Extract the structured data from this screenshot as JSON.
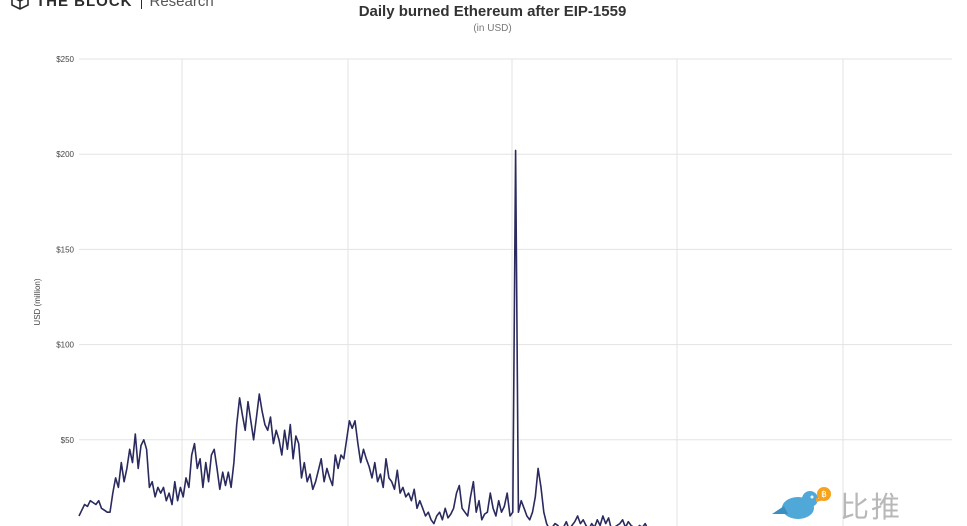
{
  "brand": {
    "name": "THE BLOCK",
    "section": "Research"
  },
  "watermark": {
    "text": "比推",
    "icon": "bird-bitcoin-icon"
  },
  "chart_data": {
    "type": "line",
    "title": "Daily burned Ethereum after EIP-1559",
    "subtitle": "(in USD)",
    "ylabel": "USD (million)",
    "xlabel": "",
    "ylim": [
      0,
      250
    ],
    "xlim": [
      0,
      1000
    ],
    "grid": true,
    "line_color": "#2a2a5e",
    "y_ticks": [
      {
        "value": 50,
        "label": "$50"
      },
      {
        "value": 100,
        "label": "$100"
      },
      {
        "value": 150,
        "label": "$150"
      },
      {
        "value": 200,
        "label": "$200"
      },
      {
        "value": 250,
        "label": "$250"
      }
    ],
    "series": [
      {
        "values": [
          10,
          13,
          16,
          15,
          18,
          17,
          16,
          18,
          14,
          13,
          12,
          12,
          22,
          30,
          25,
          38,
          28,
          35,
          45,
          38,
          53,
          35,
          47,
          50,
          45,
          25,
          28,
          20,
          25,
          22,
          25,
          18,
          22,
          16,
          28,
          18,
          25,
          20,
          30,
          25,
          42,
          48,
          35,
          40,
          25,
          38,
          28,
          42,
          45,
          35,
          24,
          33,
          26,
          33,
          25,
          38,
          58,
          72,
          63,
          55,
          70,
          60,
          50,
          62,
          74,
          65,
          58,
          55,
          62,
          48,
          55,
          50,
          42,
          55,
          45,
          58,
          40,
          52,
          48,
          30,
          38,
          28,
          32,
          24,
          28,
          34,
          40,
          28,
          35,
          30,
          26,
          42,
          35,
          42,
          40,
          50,
          60,
          56,
          60,
          48,
          38,
          45,
          40,
          36,
          30,
          38,
          28,
          32,
          25,
          40,
          30,
          28,
          24,
          34,
          22,
          25,
          20,
          22,
          18,
          24,
          14,
          18,
          14,
          10,
          12,
          8,
          6,
          10,
          12,
          8,
          14,
          9,
          11,
          14,
          22,
          26,
          14,
          12,
          10,
          20,
          28,
          12,
          18,
          8,
          11,
          12,
          22,
          14,
          10,
          18,
          12,
          15,
          22,
          10,
          12,
          202,
          12,
          18,
          14,
          10,
          8,
          12,
          20,
          35,
          25,
          12,
          6,
          3,
          4,
          6,
          5,
          2,
          4,
          7,
          3,
          5,
          7,
          10,
          6,
          8,
          5,
          3,
          6,
          4,
          8,
          5,
          10,
          6,
          9,
          3,
          4,
          5,
          6,
          8,
          4,
          7,
          5,
          4,
          3,
          5,
          4,
          6,
          3
        ]
      }
    ]
  }
}
